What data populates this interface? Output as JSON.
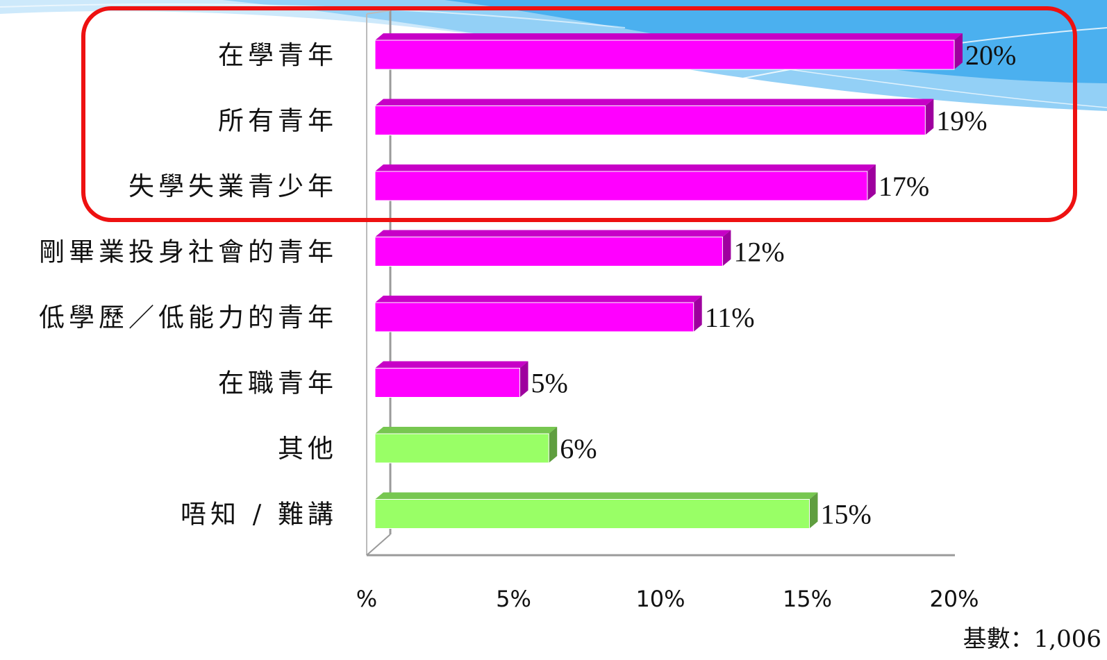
{
  "chart_data": {
    "type": "bar",
    "orientation": "horizontal",
    "categories": [
      "在學青年",
      "所有青年",
      "失學失業青少年",
      "剛畢業投身社會的青年",
      "低學歷／低能力的青年",
      "在職青年",
      "其他",
      "唔知 / 難講"
    ],
    "values": [
      20,
      19,
      17,
      12,
      11,
      5,
      6,
      15
    ],
    "value_labels": [
      "20%",
      "19%",
      "17%",
      "12%",
      "11%",
      "5%",
      "6%",
      "15%"
    ],
    "group": [
      "youth",
      "youth",
      "youth",
      "youth",
      "youth",
      "youth",
      "other",
      "other"
    ],
    "xlim": [
      0,
      20
    ],
    "x_ticks": [
      0,
      5,
      10,
      15,
      20
    ],
    "x_tick_labels": [
      "%",
      "5%",
      "10%",
      "15%",
      "20%"
    ],
    "highlight": {
      "first_n": 3,
      "color": "#ee1111"
    },
    "colors": {
      "youth": "#ff00ff",
      "other": "#99ff66"
    },
    "grid": false,
    "base_note": "基數：1,006"
  }
}
